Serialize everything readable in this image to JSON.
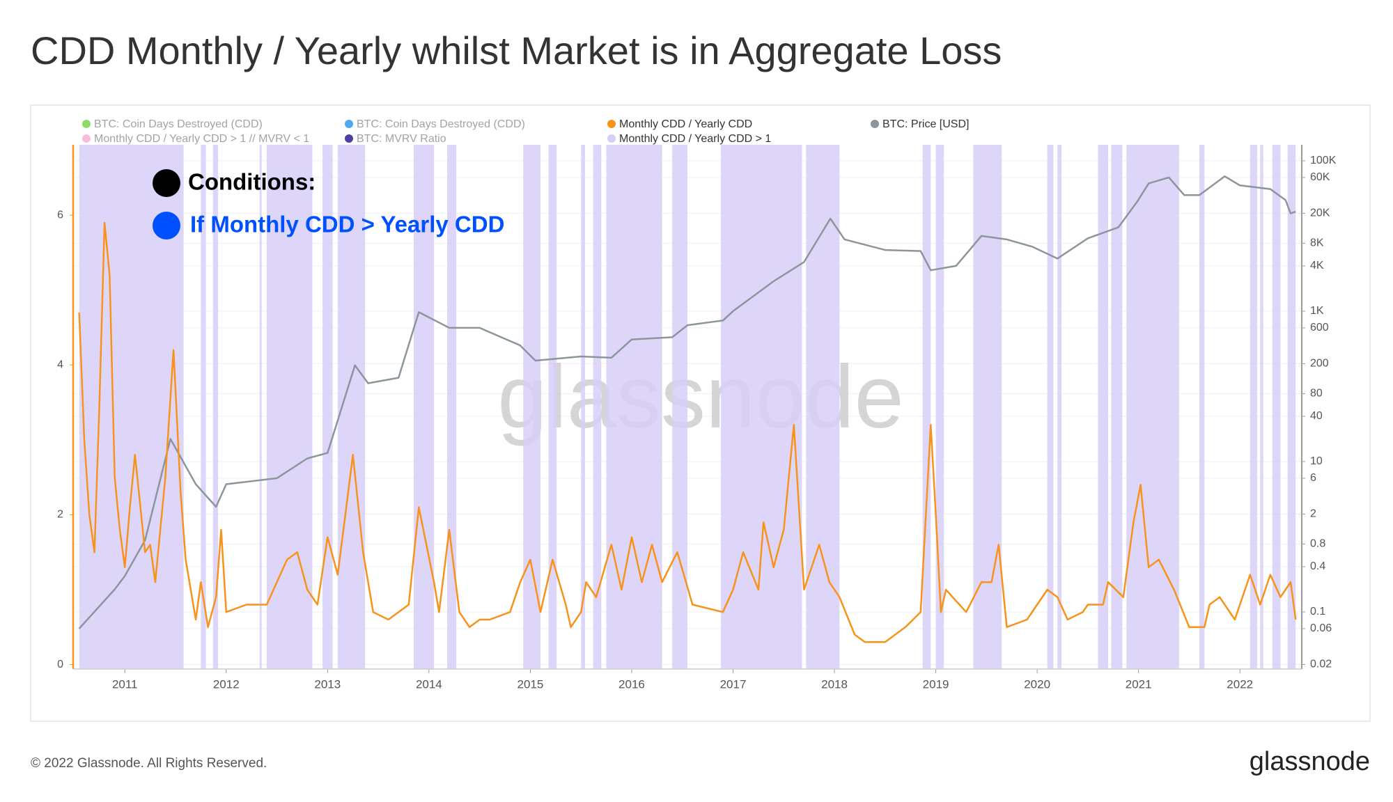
{
  "title": "CDD Monthly / Yearly whilst Market is in Aggregate Loss",
  "footer": "© 2022 Glassnode. All Rights Reserved.",
  "logo": "glassnode",
  "chart_data": {
    "type": "line",
    "watermark": "glassnode",
    "annotations": [
      {
        "text": "Conditions:",
        "color": "#000000"
      },
      {
        "text": "If Monthly CDD > Yearly CDD",
        "color": "#0050ff"
      }
    ],
    "xlim": [
      2010.49,
      2022.61
    ],
    "xticks": [
      2011,
      2012,
      2013,
      2014,
      2015,
      2016,
      2017,
      2018,
      2019,
      2020,
      2021,
      2022
    ],
    "ylim": [
      -0.06,
      6.94
    ],
    "yticks": [
      0,
      2,
      4,
      6
    ],
    "y2lim": [
      0.0174,
      163000
    ],
    "y2log": true,
    "grid": "y2",
    "y2ticks": [
      0.02,
      0.06,
      0.1,
      0.4,
      0.8,
      2,
      6,
      10,
      40,
      80,
      200,
      600,
      {
        "value": 1000,
        "label": "1K"
      },
      {
        "value": 4000,
        "label": "4K"
      },
      {
        "value": 8000,
        "label": "8K"
      },
      {
        "value": 20000,
        "label": "20K"
      },
      {
        "value": 60000,
        "label": "60K"
      },
      {
        "value": 100000,
        "label": "100K"
      }
    ],
    "series": [
      {
        "name": "BTC: Coin Days Destroyed (CDD)",
        "color": "#7ed957",
        "enabled": false
      },
      {
        "name": "Monthly CDD / Yearly CDD > 1 // MVRV < 1",
        "color": "#f4b6d8",
        "enabled": false
      },
      {
        "name": "BTC: Coin Days Destroyed (CDD)",
        "color": "#3aa0f0",
        "enabled": false
      },
      {
        "name": "BTC: MVRV Ratio",
        "color": "#3b2a9a",
        "enabled": false
      },
      {
        "name": "Monthly CDD / Yearly CDD",
        "color": "#f7931a",
        "enabled": true,
        "kind": "line",
        "axis": "y",
        "x": [
          2010.55,
          2010.6,
          2010.65,
          2010.7,
          2010.75,
          2010.8,
          2010.85,
          2010.9,
          2010.95,
          2011.0,
          2011.05,
          2011.1,
          2011.2,
          2011.25,
          2011.3,
          2011.4,
          2011.48,
          2011.55,
          2011.6,
          2011.7,
          2011.75,
          2011.82,
          2011.9,
          2011.95,
          2012.0,
          2012.2,
          2012.4,
          2012.5,
          2012.6,
          2012.7,
          2012.8,
          2012.9,
          2013.0,
          2013.1,
          2013.25,
          2013.35,
          2013.45,
          2013.6,
          2013.8,
          2013.9,
          2014.05,
          2014.1,
          2014.2,
          2014.3,
          2014.4,
          2014.5,
          2014.6,
          2014.8,
          2014.9,
          2015.0,
          2015.1,
          2015.22,
          2015.35,
          2015.4,
          2015.5,
          2015.55,
          2015.65,
          2015.8,
          2015.9,
          2016.0,
          2016.1,
          2016.2,
          2016.3,
          2016.45,
          2016.6,
          2016.9,
          2017.0,
          2017.1,
          2017.25,
          2017.3,
          2017.4,
          2017.5,
          2017.6,
          2017.7,
          2017.85,
          2017.95,
          2018.05,
          2018.2,
          2018.3,
          2018.5,
          2018.7,
          2018.85,
          2018.95,
          2019.0,
          2019.05,
          2019.1,
          2019.3,
          2019.45,
          2019.55,
          2019.62,
          2019.7,
          2019.9,
          2020.0,
          2020.1,
          2020.2,
          2020.3,
          2020.45,
          2020.5,
          2020.65,
          2020.7,
          2020.85,
          2020.95,
          2021.02,
          2021.1,
          2021.2,
          2021.35,
          2021.5,
          2021.65,
          2021.7,
          2021.8,
          2021.95,
          2022.1,
          2022.2,
          2022.3,
          2022.4,
          2022.5,
          2022.55
        ],
        "values": [
          4.7,
          3.0,
          2.0,
          1.5,
          3.5,
          5.9,
          5.2,
          2.5,
          1.8,
          1.3,
          2.1,
          2.8,
          1.5,
          1.6,
          1.1,
          2.5,
          4.2,
          2.3,
          1.4,
          0.6,
          1.1,
          0.5,
          0.9,
          1.8,
          0.7,
          0.8,
          0.8,
          1.1,
          1.4,
          1.5,
          1.0,
          0.8,
          1.7,
          1.2,
          2.8,
          1.5,
          0.7,
          0.6,
          0.8,
          2.1,
          1.1,
          0.7,
          1.8,
          0.7,
          0.5,
          0.6,
          0.6,
          0.7,
          1.1,
          1.4,
          0.7,
          1.4,
          0.8,
          0.5,
          0.7,
          1.1,
          0.9,
          1.6,
          1.0,
          1.7,
          1.1,
          1.6,
          1.1,
          1.5,
          0.8,
          0.7,
          1.0,
          1.5,
          1.0,
          1.9,
          1.3,
          1.8,
          3.2,
          1.0,
          1.6,
          1.1,
          0.9,
          0.4,
          0.3,
          0.3,
          0.5,
          0.7,
          3.2,
          2.0,
          0.7,
          1.0,
          0.7,
          1.1,
          1.1,
          1.6,
          0.5,
          0.6,
          0.8,
          1.0,
          0.9,
          0.6,
          0.7,
          0.8,
          0.8,
          1.1,
          0.9,
          1.9,
          2.4,
          1.3,
          1.4,
          1.0,
          0.5,
          0.5,
          0.8,
          0.9,
          0.6,
          1.2,
          0.8,
          1.2,
          0.9,
          1.1,
          0.6
        ]
      },
      {
        "name": "Monthly CDD / Yearly CDD > 1",
        "color": "#d8cff7",
        "enabled": true,
        "kind": "band",
        "x_start": [
          2010.55,
          2011.75,
          2011.87,
          2012.33,
          2012.4,
          2012.95,
          2013.1,
          2013.85,
          2014.18,
          2014.93,
          2015.18,
          2015.5,
          2015.62,
          2015.75,
          2016.4,
          2016.88,
          2017.72,
          2018.87,
          2019.0,
          2019.37,
          2020.1,
          2020.2,
          2020.6,
          2020.73,
          2020.88,
          2021.6,
          2022.1,
          2022.2,
          2022.32,
          2022.47
        ],
        "x_end": [
          2011.58,
          2011.8,
          2011.92,
          2012.35,
          2012.85,
          2013.05,
          2013.37,
          2014.05,
          2014.27,
          2015.1,
          2015.26,
          2015.54,
          2015.7,
          2016.3,
          2016.55,
          2017.68,
          2018.05,
          2018.95,
          2019.08,
          2019.65,
          2020.16,
          2020.24,
          2020.7,
          2020.84,
          2021.4,
          2021.65,
          2022.17,
          2022.23,
          2022.4,
          2022.55
        ]
      },
      {
        "name": "BTC: Price [USD]",
        "color": "#8a959c",
        "enabled": true,
        "kind": "line",
        "axis": "y2",
        "x": [
          2010.55,
          2010.9,
          2011.0,
          2011.2,
          2011.45,
          2011.7,
          2011.9,
          2012.0,
          2012.5,
          2012.8,
          2013.0,
          2013.27,
          2013.4,
          2013.7,
          2013.9,
          2014.2,
          2014.5,
          2014.9,
          2015.05,
          2015.5,
          2015.8,
          2016.0,
          2016.4,
          2016.55,
          2016.9,
          2017.0,
          2017.4,
          2017.7,
          2017.96,
          2018.1,
          2018.5,
          2018.85,
          2018.95,
          2019.2,
          2019.45,
          2019.7,
          2019.95,
          2020.2,
          2020.5,
          2020.8,
          2020.99,
          2021.1,
          2021.3,
          2021.45,
          2021.6,
          2021.85,
          2022.0,
          2022.3,
          2022.45,
          2022.5,
          2022.55
        ],
        "values": [
          0.06,
          0.2,
          0.3,
          0.9,
          20,
          5,
          2.5,
          5,
          6,
          11,
          13,
          190,
          110,
          130,
          970,
          600,
          600,
          350,
          220,
          250,
          240,
          420,
          450,
          650,
          750,
          1000,
          2500,
          4500,
          17000,
          9000,
          6500,
          6300,
          3500,
          4000,
          10000,
          9000,
          7200,
          5000,
          9300,
          13000,
          29000,
          50000,
          60000,
          35000,
          35000,
          62000,
          47000,
          42000,
          30000,
          20000,
          21000
        ]
      }
    ]
  }
}
